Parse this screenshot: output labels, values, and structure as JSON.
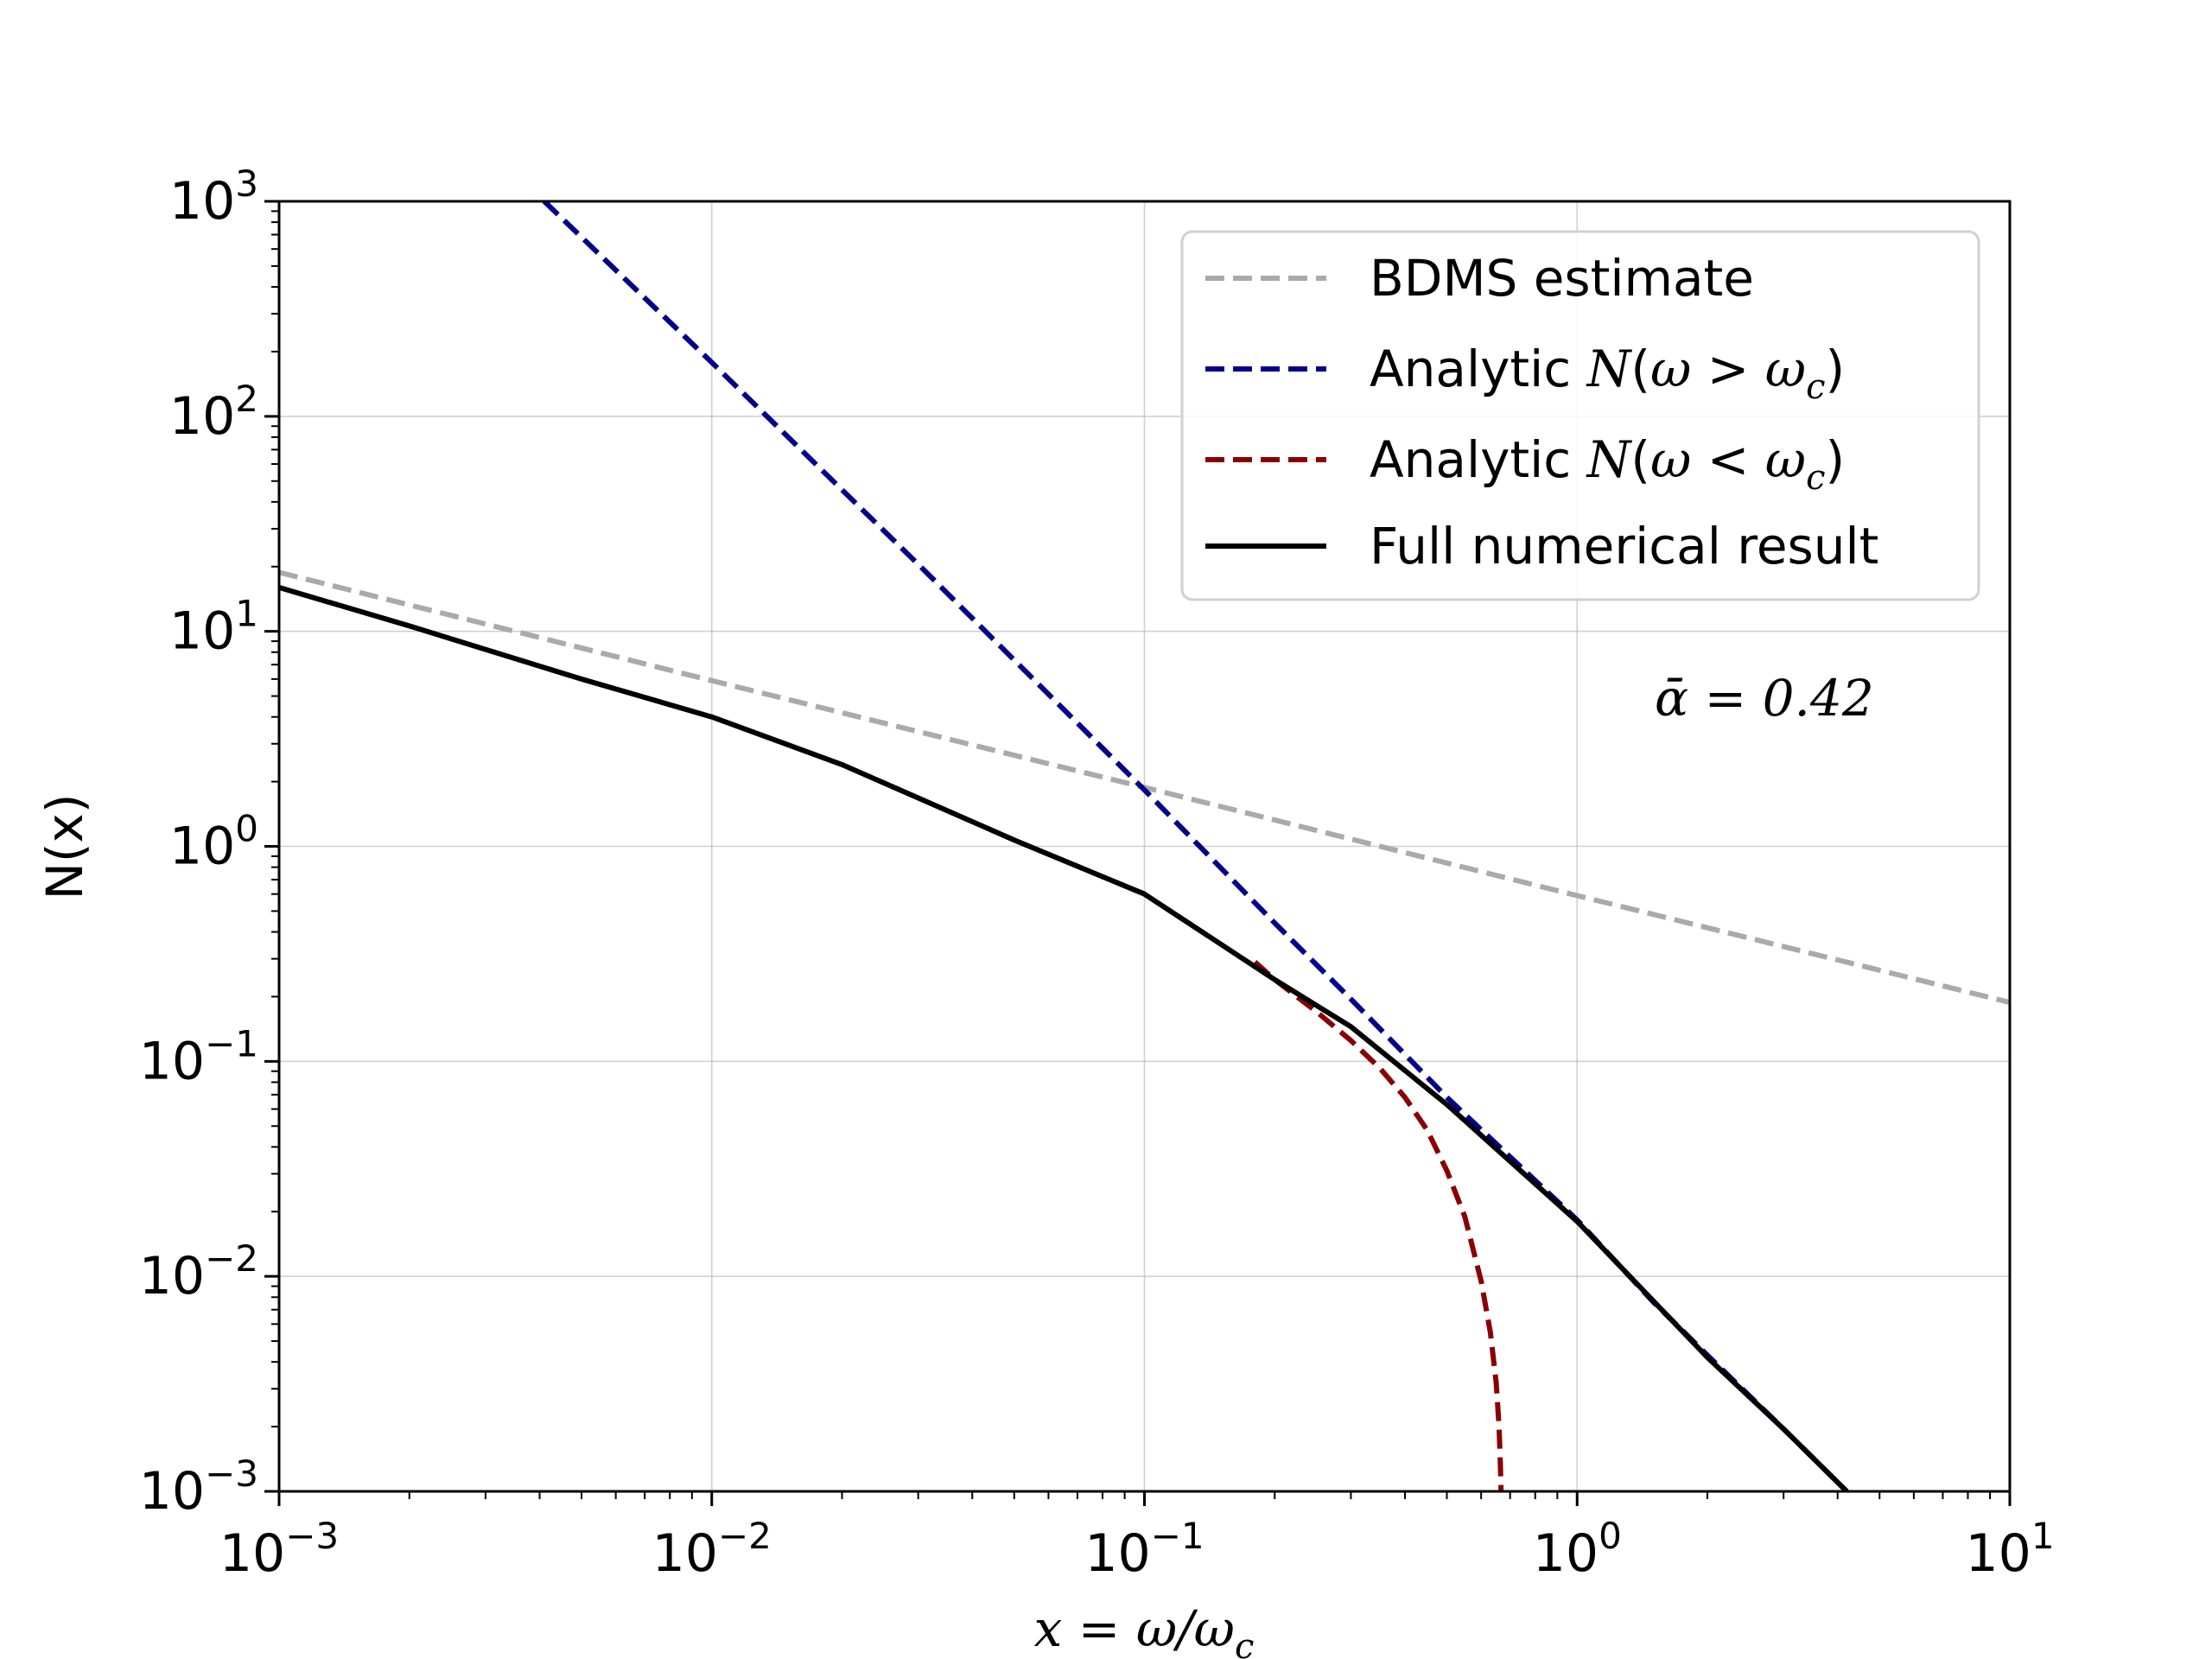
{
  "chart_data": {
    "type": "line",
    "xlabel": {
      "pre": "x = ω/ω",
      "sub": "c"
    },
    "ylabel": "N(x)",
    "xscale": "log",
    "yscale": "log",
    "xlim": [
      0.001,
      10
    ],
    "ylim": [
      0.001,
      1000
    ],
    "grid": true,
    "legend_placement": "top-right",
    "x_tick_labels": [
      {
        "base": "10",
        "exp": "−3"
      },
      {
        "base": "10",
        "exp": "−2"
      },
      {
        "base": "10",
        "exp": "−1"
      },
      {
        "base": "10",
        "exp": "0"
      },
      {
        "base": "10",
        "exp": "1"
      }
    ],
    "y_tick_labels": [
      {
        "base": "10",
        "exp": "−3"
      },
      {
        "base": "10",
        "exp": "−2"
      },
      {
        "base": "10",
        "exp": "−1"
      },
      {
        "base": "10",
        "exp": "0"
      },
      {
        "base": "10",
        "exp": "1"
      },
      {
        "base": "10",
        "exp": "2"
      },
      {
        "base": "10",
        "exp": "3"
      }
    ],
    "annotation": "ᾱ = 0.42",
    "series": [
      {
        "name": "BDMS estimate",
        "color": "#aaaaaa",
        "style": "dashed",
        "x": [
          0.001,
          0.01,
          0.1,
          1,
          10
        ],
        "y": [
          18.8,
          5.9,
          1.88,
          0.59,
          0.188
        ]
      },
      {
        "name": "Analytic N(ω > ω_c)",
        "legend_parts": [
          "Analytic ",
          "N",
          "(",
          "ω",
          " > ",
          "ω",
          "c",
          ")"
        ],
        "color": "#00008b",
        "style": "dashed",
        "x": [
          0.0041,
          0.01,
          0.03,
          0.1,
          0.2,
          0.3,
          0.5,
          1.0,
          1.5,
          2.0,
          3.0,
          4.2
        ],
        "y": [
          1000,
          178,
          20.5,
          1.83,
          0.44,
          0.195,
          0.068,
          0.0183,
          0.0076,
          0.0043,
          0.00195,
          0.001
        ]
      },
      {
        "name": "Analytic N(ω < ω_c)",
        "legend_parts": [
          "Analytic ",
          "N",
          "(",
          "ω",
          " < ",
          "ω",
          "c",
          ")"
        ],
        "color": "#8b0000",
        "style": "dashed",
        "x": [
          0.18,
          0.2,
          0.25,
          0.3,
          0.35,
          0.4,
          0.45,
          0.5,
          0.55,
          0.6,
          0.63,
          0.65,
          0.66,
          0.665,
          0.667
        ],
        "y": [
          0.29,
          0.24,
          0.17,
          0.125,
          0.093,
          0.068,
          0.048,
          0.031,
          0.019,
          0.0095,
          0.0055,
          0.0032,
          0.002,
          0.0013,
          0.001
        ]
      },
      {
        "name": "Full numerical result",
        "color": "#000000",
        "style": "solid",
        "x": [
          0.001,
          0.002,
          0.005,
          0.01,
          0.02,
          0.05,
          0.1,
          0.2,
          0.3,
          0.5,
          1.0,
          2.0,
          3.0,
          4.2
        ],
        "y": [
          16.0,
          10.6,
          6.0,
          4.0,
          2.4,
          1.07,
          0.6,
          0.24,
          0.145,
          0.063,
          0.018,
          0.0042,
          0.00195,
          0.001
        ]
      }
    ]
  }
}
